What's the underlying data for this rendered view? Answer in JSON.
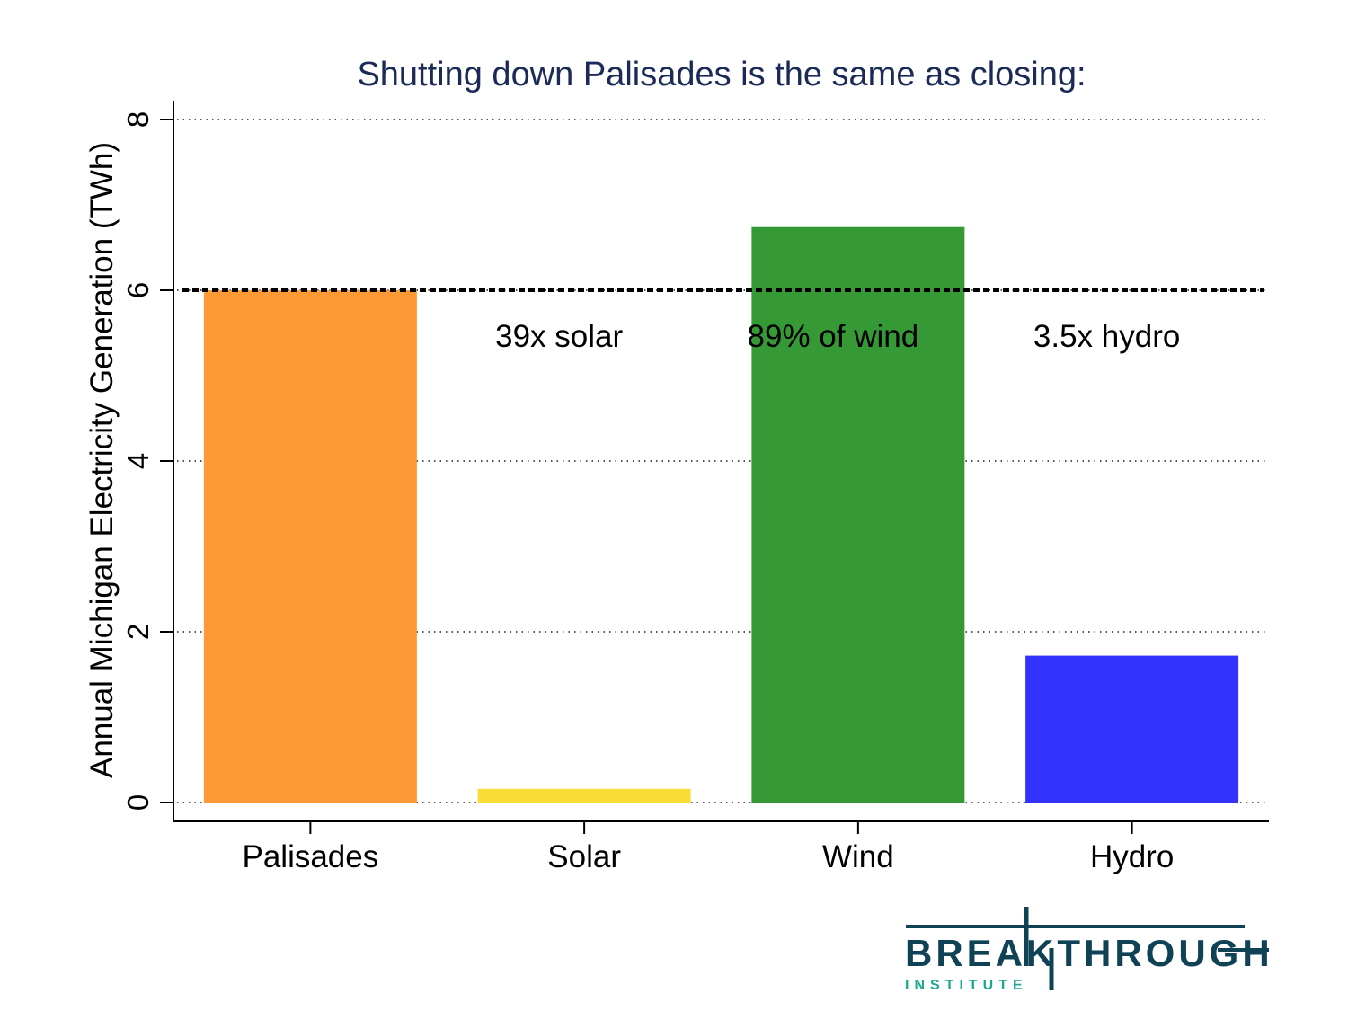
{
  "chart_data": {
    "type": "bar",
    "title": "Shutting down Palisades is the same as closing:",
    "xlabel": "",
    "ylabel": "Annual Michigan Electricity Generation (TWh)",
    "ylim": [
      0,
      8.45
    ],
    "yticks": [
      0,
      2,
      4,
      6,
      8
    ],
    "grid": "dotted horizontal",
    "categories": [
      "Palisades",
      "Solar",
      "Wind",
      "Hydro"
    ],
    "values": [
      6.0,
      0.16,
      6.74,
      1.72
    ],
    "colors": [
      "#FD9A35",
      "#F9DC35",
      "#359A35",
      "#3333FF"
    ],
    "reference_line": {
      "value": 6.0,
      "style": "dashed"
    },
    "annotations": [
      "39x solar",
      "89% of wind",
      "3.5x hydro"
    ]
  },
  "logo": {
    "name": "BREAKTHROUGH",
    "subtitle": "INSTITUTE",
    "color_dark": "#0E4254",
    "color_accent": "#1BAA8E"
  }
}
